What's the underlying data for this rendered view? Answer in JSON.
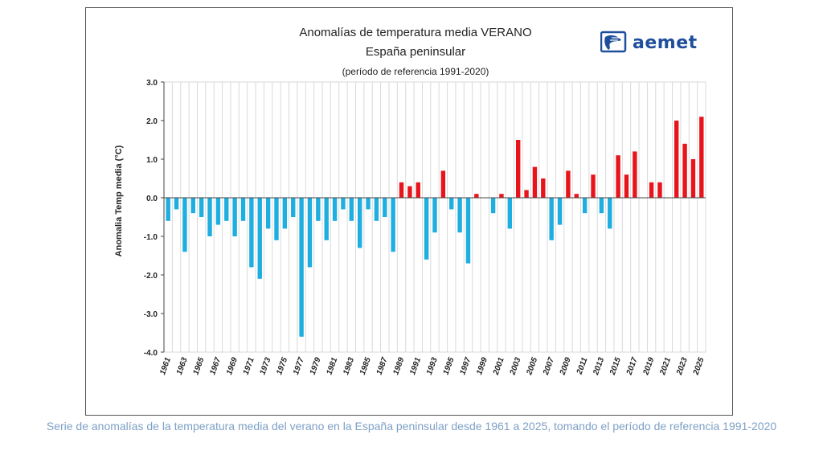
{
  "title": "Anomalías de temperatura media VERANO",
  "subtitle": "España peninsular",
  "reference": "(período de referencia 1991-2020)",
  "logo_text": "aemet",
  "caption": "Serie de anomalías de la temperatura media del verano en la España peninsular desde 1961 a 2025, tomando el período de referencia 1991-2020",
  "colors": {
    "positive": "#e8141b",
    "negative": "#1eaee0",
    "caption": "#7da0c6",
    "logo": "#1f4e9c"
  },
  "chart_data": {
    "type": "bar",
    "title": "Anomalías de temperatura media VERANO",
    "subtitle": "España peninsular",
    "ylabel": "Anomalia Temp media (°C)",
    "xlabel": "",
    "ylim": [
      -4.0,
      3.0
    ],
    "yticks": [
      "3.0",
      "2.0",
      "1.0",
      "0.0",
      "-1.0",
      "-2.0",
      "-3.0",
      "-4.0"
    ],
    "ytick_values": [
      3,
      2,
      1,
      0,
      -1,
      -2,
      -3,
      -4
    ],
    "grid": "vertical",
    "categories": [
      1961,
      1962,
      1963,
      1964,
      1965,
      1966,
      1967,
      1968,
      1969,
      1970,
      1971,
      1972,
      1973,
      1974,
      1975,
      1976,
      1977,
      1978,
      1979,
      1980,
      1981,
      1982,
      1983,
      1984,
      1985,
      1986,
      1987,
      1988,
      1989,
      1990,
      1991,
      1992,
      1993,
      1994,
      1995,
      1996,
      1997,
      1998,
      1999,
      2000,
      2001,
      2002,
      2003,
      2004,
      2005,
      2006,
      2007,
      2008,
      2009,
      2010,
      2011,
      2012,
      2013,
      2014,
      2015,
      2016,
      2017,
      2018,
      2019,
      2020,
      2021,
      2022,
      2023,
      2024,
      2025
    ],
    "xtick_labels": [
      "1961",
      "1963",
      "1965",
      "1967",
      "1969",
      "1971",
      "1973",
      "1975",
      "1977",
      "1979",
      "1981",
      "1983",
      "1985",
      "1987",
      "1989",
      "1991",
      "1993",
      "1995",
      "1997",
      "1999",
      "2001",
      "2003",
      "2005",
      "2007",
      "2009",
      "2011",
      "2013",
      "2015",
      "2017",
      "2019",
      "2021",
      "2023",
      "2025"
    ],
    "values": [
      -0.6,
      -0.3,
      -1.4,
      -0.4,
      -0.5,
      -1.0,
      -0.7,
      -0.6,
      -1.0,
      -0.6,
      -1.8,
      -2.1,
      -0.8,
      -1.1,
      -0.8,
      -0.5,
      -3.6,
      -1.8,
      -0.6,
      -1.1,
      -0.6,
      -0.3,
      -0.6,
      -1.3,
      -0.3,
      -0.6,
      -0.5,
      -1.4,
      0.4,
      0.3,
      0.4,
      -1.6,
      -0.9,
      0.7,
      -0.3,
      -0.9,
      -1.7,
      0.1,
      0.0,
      -0.4,
      0.1,
      -0.8,
      1.5,
      0.2,
      0.8,
      0.5,
      -1.1,
      -0.7,
      0.7,
      0.1,
      -0.4,
      0.6,
      -0.4,
      -0.8,
      1.1,
      0.6,
      1.2,
      0.0,
      0.4,
      0.4,
      0.0,
      2.0,
      1.4,
      1.0,
      2.1
    ]
  }
}
